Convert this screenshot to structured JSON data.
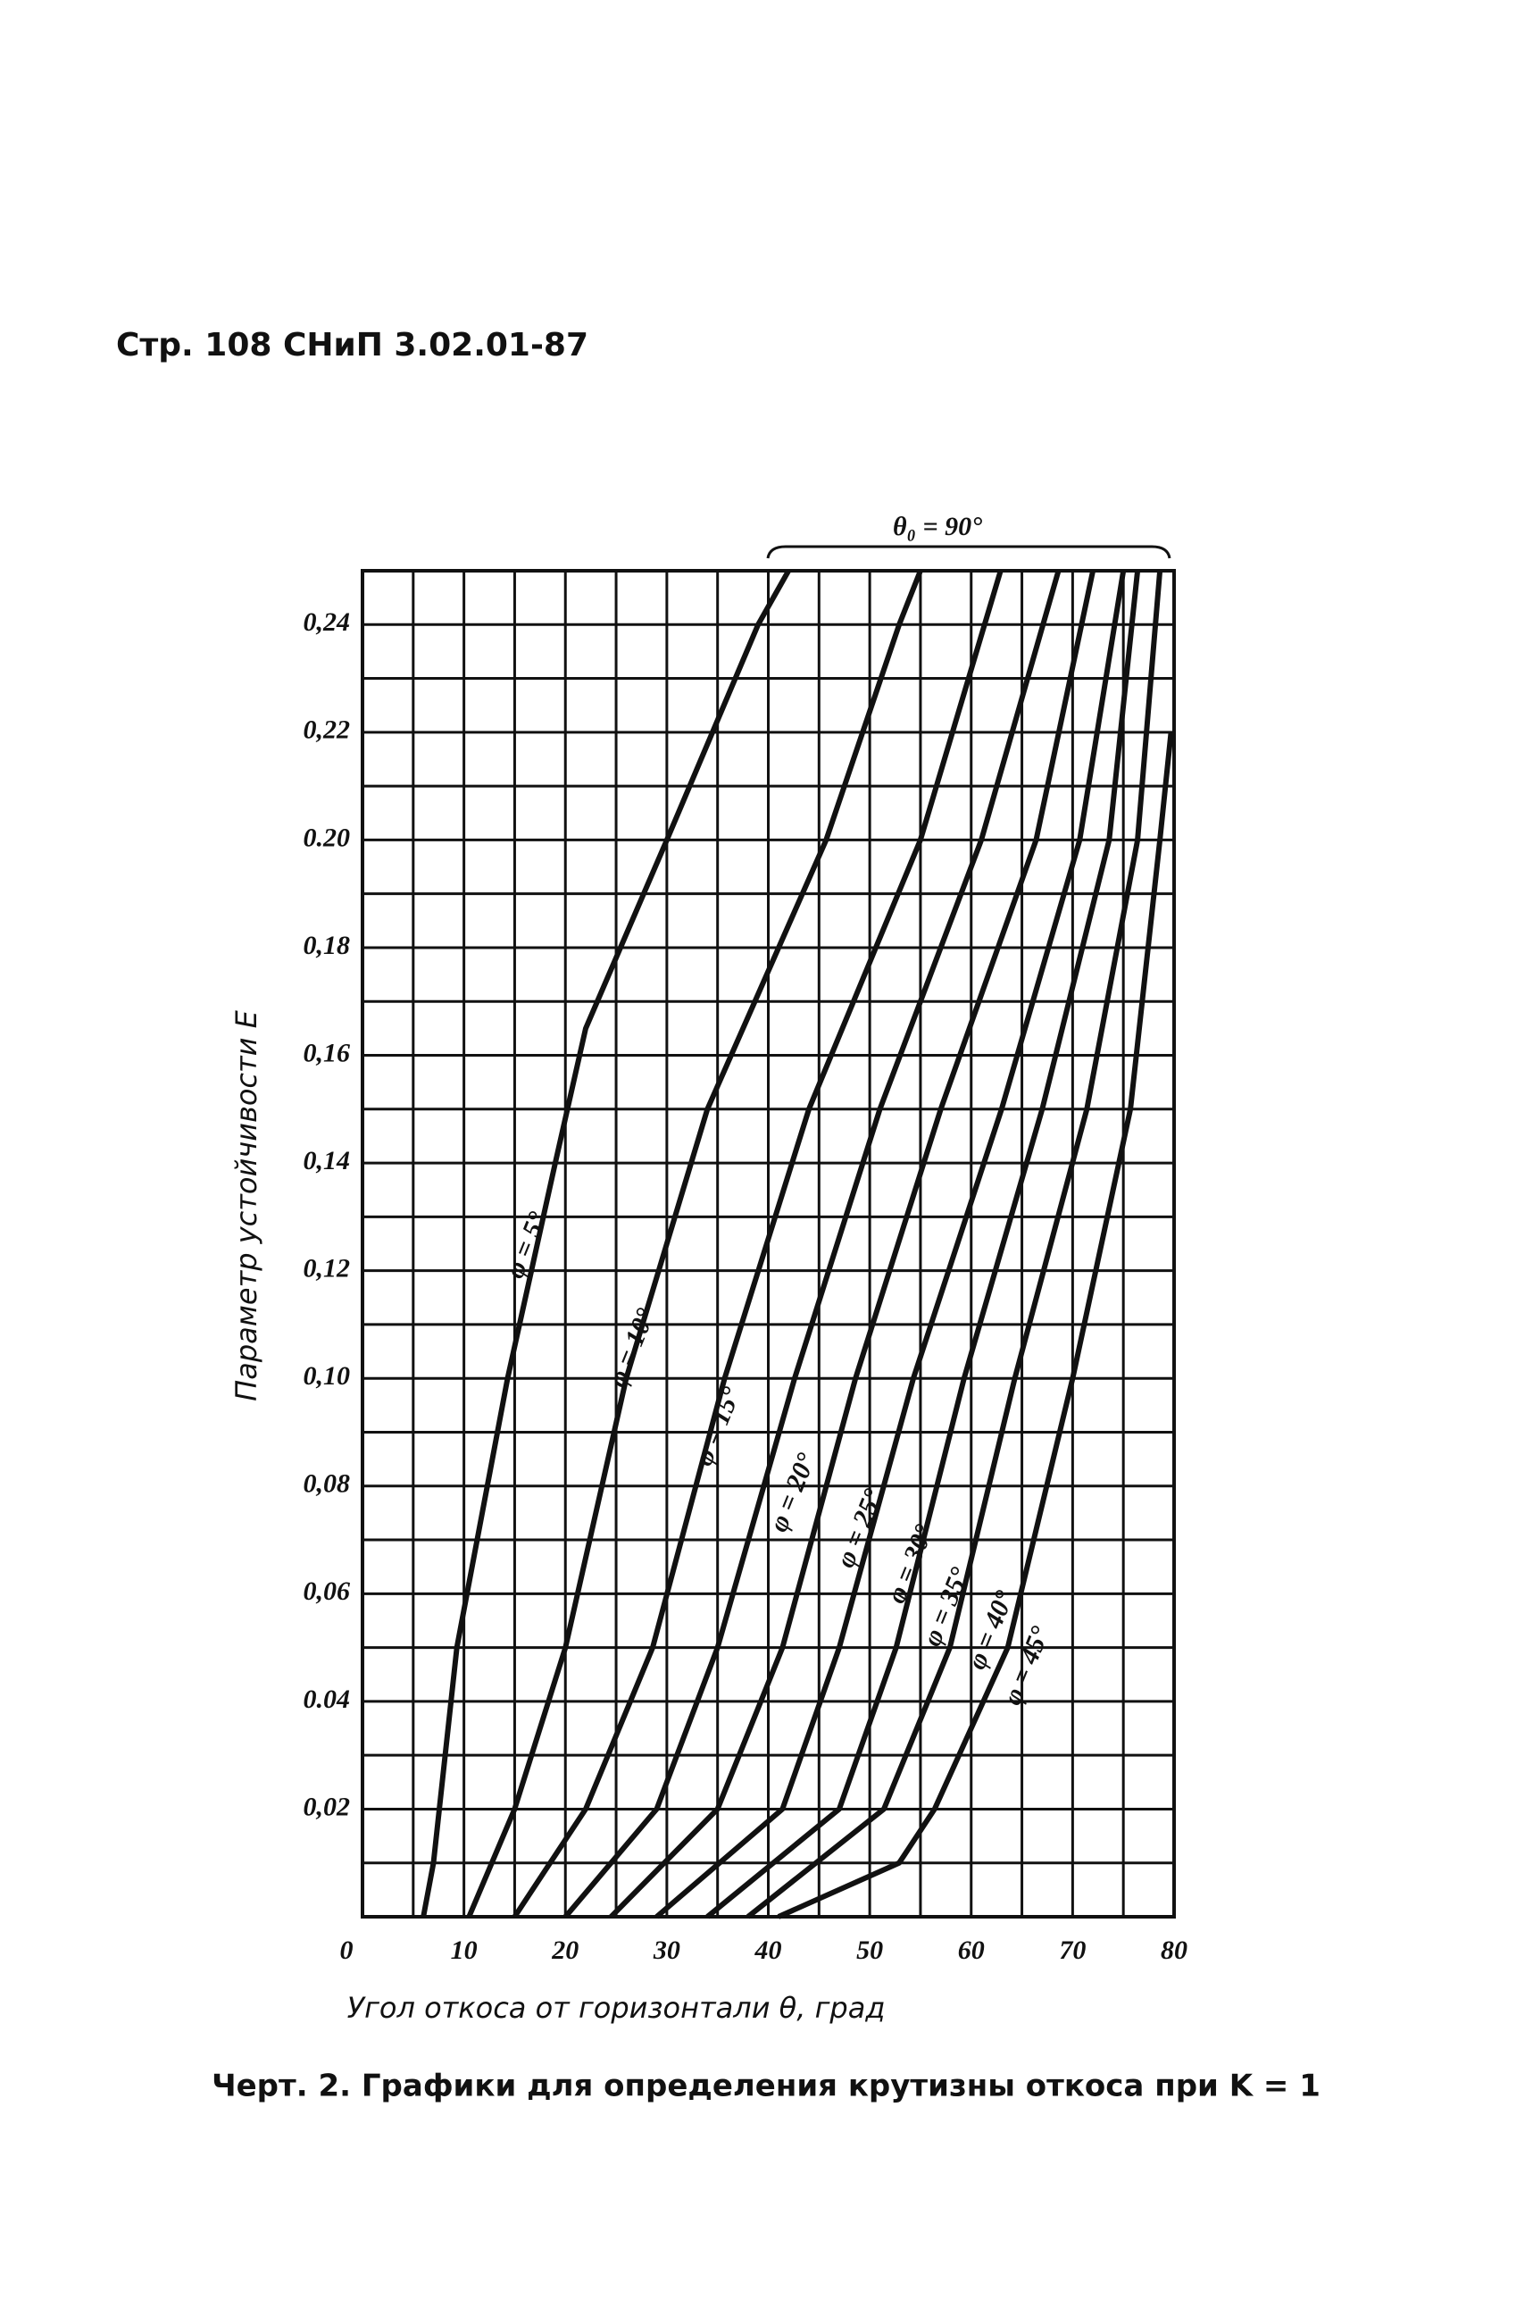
{
  "header": "Стр. 108 СНиП 3.02.01-87",
  "caption": "Черт. 2. Графики для определения крутизны откоса при K = 1",
  "chart_data": {
    "type": "line",
    "y_label": "Параметр устойчивости E",
    "x_label": "Угол откоса от горизонтали θ, град",
    "annotation": "θ₀ = 90°",
    "xlim": [
      0,
      80
    ],
    "ylim": [
      0,
      0.25
    ],
    "xticks": [
      0,
      10,
      20,
      30,
      40,
      50,
      60,
      70,
      80
    ],
    "x_minor_ticks": [
      5,
      15,
      25,
      35,
      45,
      55,
      65,
      75
    ],
    "yticks": [
      {
        "value": 0.02,
        "label": "0,02"
      },
      {
        "value": 0.04,
        "label": "0.04"
      },
      {
        "value": 0.06,
        "label": "0,06"
      },
      {
        "value": 0.08,
        "label": "0,08"
      },
      {
        "value": 0.1,
        "label": "0,10"
      },
      {
        "value": 0.12,
        "label": "0,12"
      },
      {
        "value": 0.14,
        "label": "0,14"
      },
      {
        "value": 0.16,
        "label": "0,16"
      },
      {
        "value": 0.18,
        "label": "0,18"
      },
      {
        "value": 0.2,
        "label": "0.20"
      },
      {
        "value": 0.22,
        "label": "0,22"
      },
      {
        "value": 0.24,
        "label": "0,24"
      }
    ],
    "y_minor_ticks": [
      0.01,
      0.03,
      0.05,
      0.07,
      0.09,
      0.11,
      0.13,
      0.15,
      0.17,
      0.19,
      0.21,
      0.23
    ],
    "grid": true,
    "color": "#111111",
    "series": [
      {
        "name": "φ = 5°",
        "x": [
          6,
          7,
          9.3,
          14.3,
          19,
          22,
          30,
          39,
          42
        ],
        "values": [
          0,
          0.01,
          0.05,
          0.1,
          0.14,
          0.165,
          0.2,
          0.24,
          0.25
        ]
      },
      {
        "name": "φ = 10°",
        "x": [
          10.5,
          15,
          20,
          26,
          34,
          45.7,
          52.9,
          55
        ],
        "values": [
          0,
          0.02,
          0.05,
          0.1,
          0.15,
          0.2,
          0.24,
          0.25
        ]
      },
      {
        "name": "φ = 15°",
        "x": [
          15,
          22,
          28.6,
          35.7,
          44,
          55,
          62.9
        ],
        "values": [
          0,
          0.02,
          0.05,
          0.1,
          0.15,
          0.2,
          0.25
        ]
      },
      {
        "name": "φ = 20°",
        "x": [
          20,
          29,
          35,
          42.6,
          51,
          61,
          68.6
        ],
        "values": [
          0,
          0.02,
          0.05,
          0.1,
          0.15,
          0.2,
          0.25
        ]
      },
      {
        "name": "φ = 25°",
        "x": [
          24.5,
          35,
          41.4,
          48.6,
          57,
          66.4,
          72
        ],
        "values": [
          0,
          0.02,
          0.05,
          0.1,
          0.15,
          0.2,
          0.25
        ]
      },
      {
        "name": "φ = 30°",
        "x": [
          29,
          41.4,
          47,
          54.3,
          63,
          70.7,
          75
        ],
        "values": [
          0,
          0.02,
          0.05,
          0.1,
          0.15,
          0.2,
          0.25
        ]
      },
      {
        "name": "φ = 35°",
        "x": [
          34,
          47,
          52.6,
          59.3,
          67,
          73.6,
          76.4
        ],
        "values": [
          0,
          0.02,
          0.05,
          0.1,
          0.15,
          0.2,
          0.25
        ]
      },
      {
        "name": "φ = 40°",
        "x": [
          38,
          51.4,
          57.9,
          64.3,
          71.4,
          76.4,
          78.6
        ],
        "values": [
          0,
          0.02,
          0.05,
          0.1,
          0.15,
          0.2,
          0.25
        ]
      },
      {
        "name": "φ = 45°",
        "x": [
          41,
          52.9,
          56.4,
          63.6,
          70,
          75.7,
          78.6,
          79.7
        ],
        "values": [
          0,
          0.01,
          0.02,
          0.05,
          0.1,
          0.15,
          0.2,
          0.22
        ]
      }
    ]
  }
}
